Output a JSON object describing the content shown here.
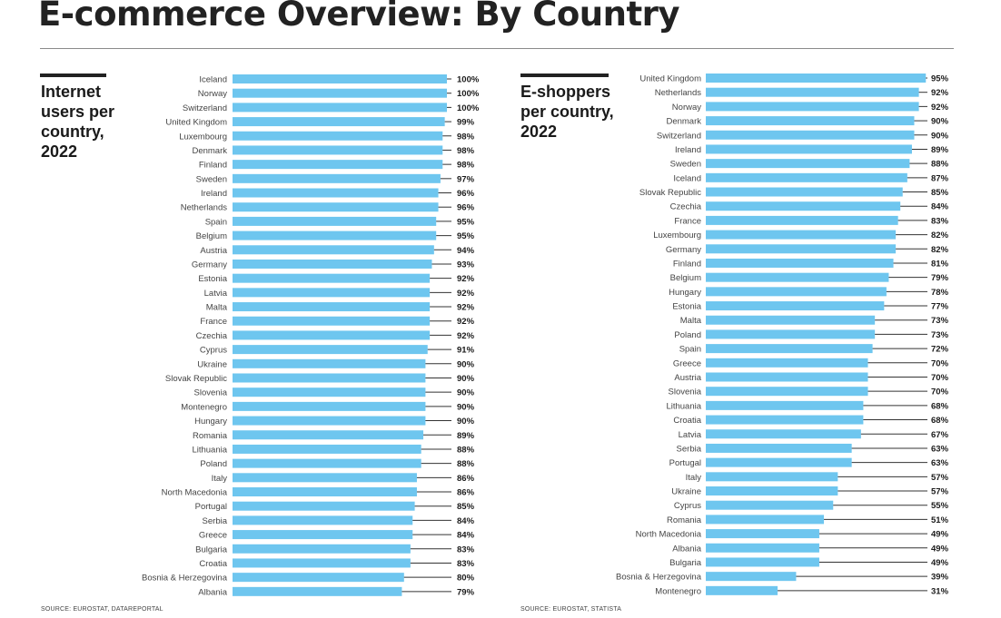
{
  "page": {
    "title": "E-commerce Overview: By Country"
  },
  "panels": [
    {
      "title_lines": [
        "Internet",
        "users per",
        "country,",
        "2022"
      ],
      "source": "SOURCE: EUROSTAT, DATAREPORTAL"
    },
    {
      "title_lines": [
        "E-shoppers",
        "per country,",
        "2022"
      ],
      "source": "SOURCE: EUROSTAT, STATISTA"
    }
  ],
  "colors": {
    "bar": "#6ec6ef",
    "leader": "#333333",
    "text": "#1a1a1a"
  },
  "chart_data": [
    {
      "type": "bar",
      "orientation": "horizontal",
      "title": "Internet users per country, 2022",
      "value_format": "percent",
      "xlim": [
        0,
        100
      ],
      "categories": [
        "Iceland",
        "Norway",
        "Switzerland",
        "United Kingdom",
        "Luxembourg",
        "Denmark",
        "Finland",
        "Sweden",
        "Ireland",
        "Netherlands",
        "Spain",
        "Belgium",
        "Austria",
        "Germany",
        "Estonia",
        "Latvia",
        "Malta",
        "France",
        "Czechia",
        "Cyprus",
        "Ukraine",
        "Slovak Republic",
        "Slovenia",
        "Montenegro",
        "Hungary",
        "Romania",
        "Lithuania",
        "Poland",
        "Italy",
        "North Macedonia",
        "Portugal",
        "Serbia",
        "Greece",
        "Bulgaria",
        "Croatia",
        "Bosnia & Herzegovina",
        "Albania"
      ],
      "values": [
        100,
        100,
        100,
        99,
        98,
        98,
        98,
        97,
        96,
        96,
        95,
        95,
        94,
        93,
        92,
        92,
        92,
        92,
        92,
        91,
        90,
        90,
        90,
        90,
        90,
        89,
        88,
        88,
        86,
        86,
        85,
        84,
        84,
        83,
        83,
        80,
        79
      ],
      "labels": [
        "100%",
        "100%",
        "100%",
        "99%",
        "98%",
        "98%",
        "98%",
        "97%",
        "96%",
        "96%",
        "95%",
        "95%",
        "94%",
        "93%",
        "92%",
        "92%",
        "92%",
        "92%",
        "92%",
        "91%",
        "90%",
        "90%",
        "90%",
        "90%",
        "90%",
        "89%",
        "88%",
        "88%",
        "86%",
        "86%",
        "85%",
        "84%",
        "84%",
        "83%",
        "83%",
        "80%",
        "79%"
      ],
      "grid": false,
      "legend": "none"
    },
    {
      "type": "bar",
      "orientation": "horizontal",
      "title": "E-shoppers per country, 2022",
      "value_format": "percent",
      "xlim": [
        0,
        100
      ],
      "categories": [
        "United Kingdom",
        "Netherlands",
        "Norway",
        "Denmark",
        "Switzerland",
        "Ireland",
        "Sweden",
        "Iceland",
        "Slovak Republic",
        "Czechia",
        "France",
        "Luxembourg",
        "Germany",
        "Finland",
        "Belgium",
        "Hungary",
        "Estonia",
        "Malta",
        "Poland",
        "Spain",
        "Greece",
        "Austria",
        "Slovenia",
        "Lithuania",
        "Croatia",
        "Latvia",
        "Serbia",
        "Portugal",
        "Italy",
        "Ukraine",
        "Cyprus",
        "Romania",
        "North Macedonia",
        "Albania",
        "Bulgaria",
        "Bosnia & Herzegovina",
        "Montenegro"
      ],
      "values": [
        95,
        92,
        92,
        90,
        90,
        89,
        88,
        87,
        85,
        84,
        83,
        82,
        82,
        81,
        79,
        78,
        77,
        73,
        73,
        72,
        70,
        70,
        70,
        68,
        68,
        67,
        63,
        63,
        57,
        57,
        55,
        51,
        49,
        49,
        49,
        39,
        31
      ],
      "labels": [
        "95%",
        "92%",
        "92%",
        "90%",
        "90%",
        "89%",
        "88%",
        "87%",
        "85%",
        "84%",
        "83%",
        "82%",
        "82%",
        "81%",
        "79%",
        "78%",
        "77%",
        "73%",
        "73%",
        "72%",
        "70%",
        "70%",
        "70%",
        "68%",
        "68%",
        "67%",
        "63%",
        "63%",
        "57%",
        "57%",
        "55%",
        "51%",
        "49%",
        "49%",
        "49%",
        "39%",
        "31%"
      ],
      "grid": false,
      "legend": "none"
    }
  ]
}
